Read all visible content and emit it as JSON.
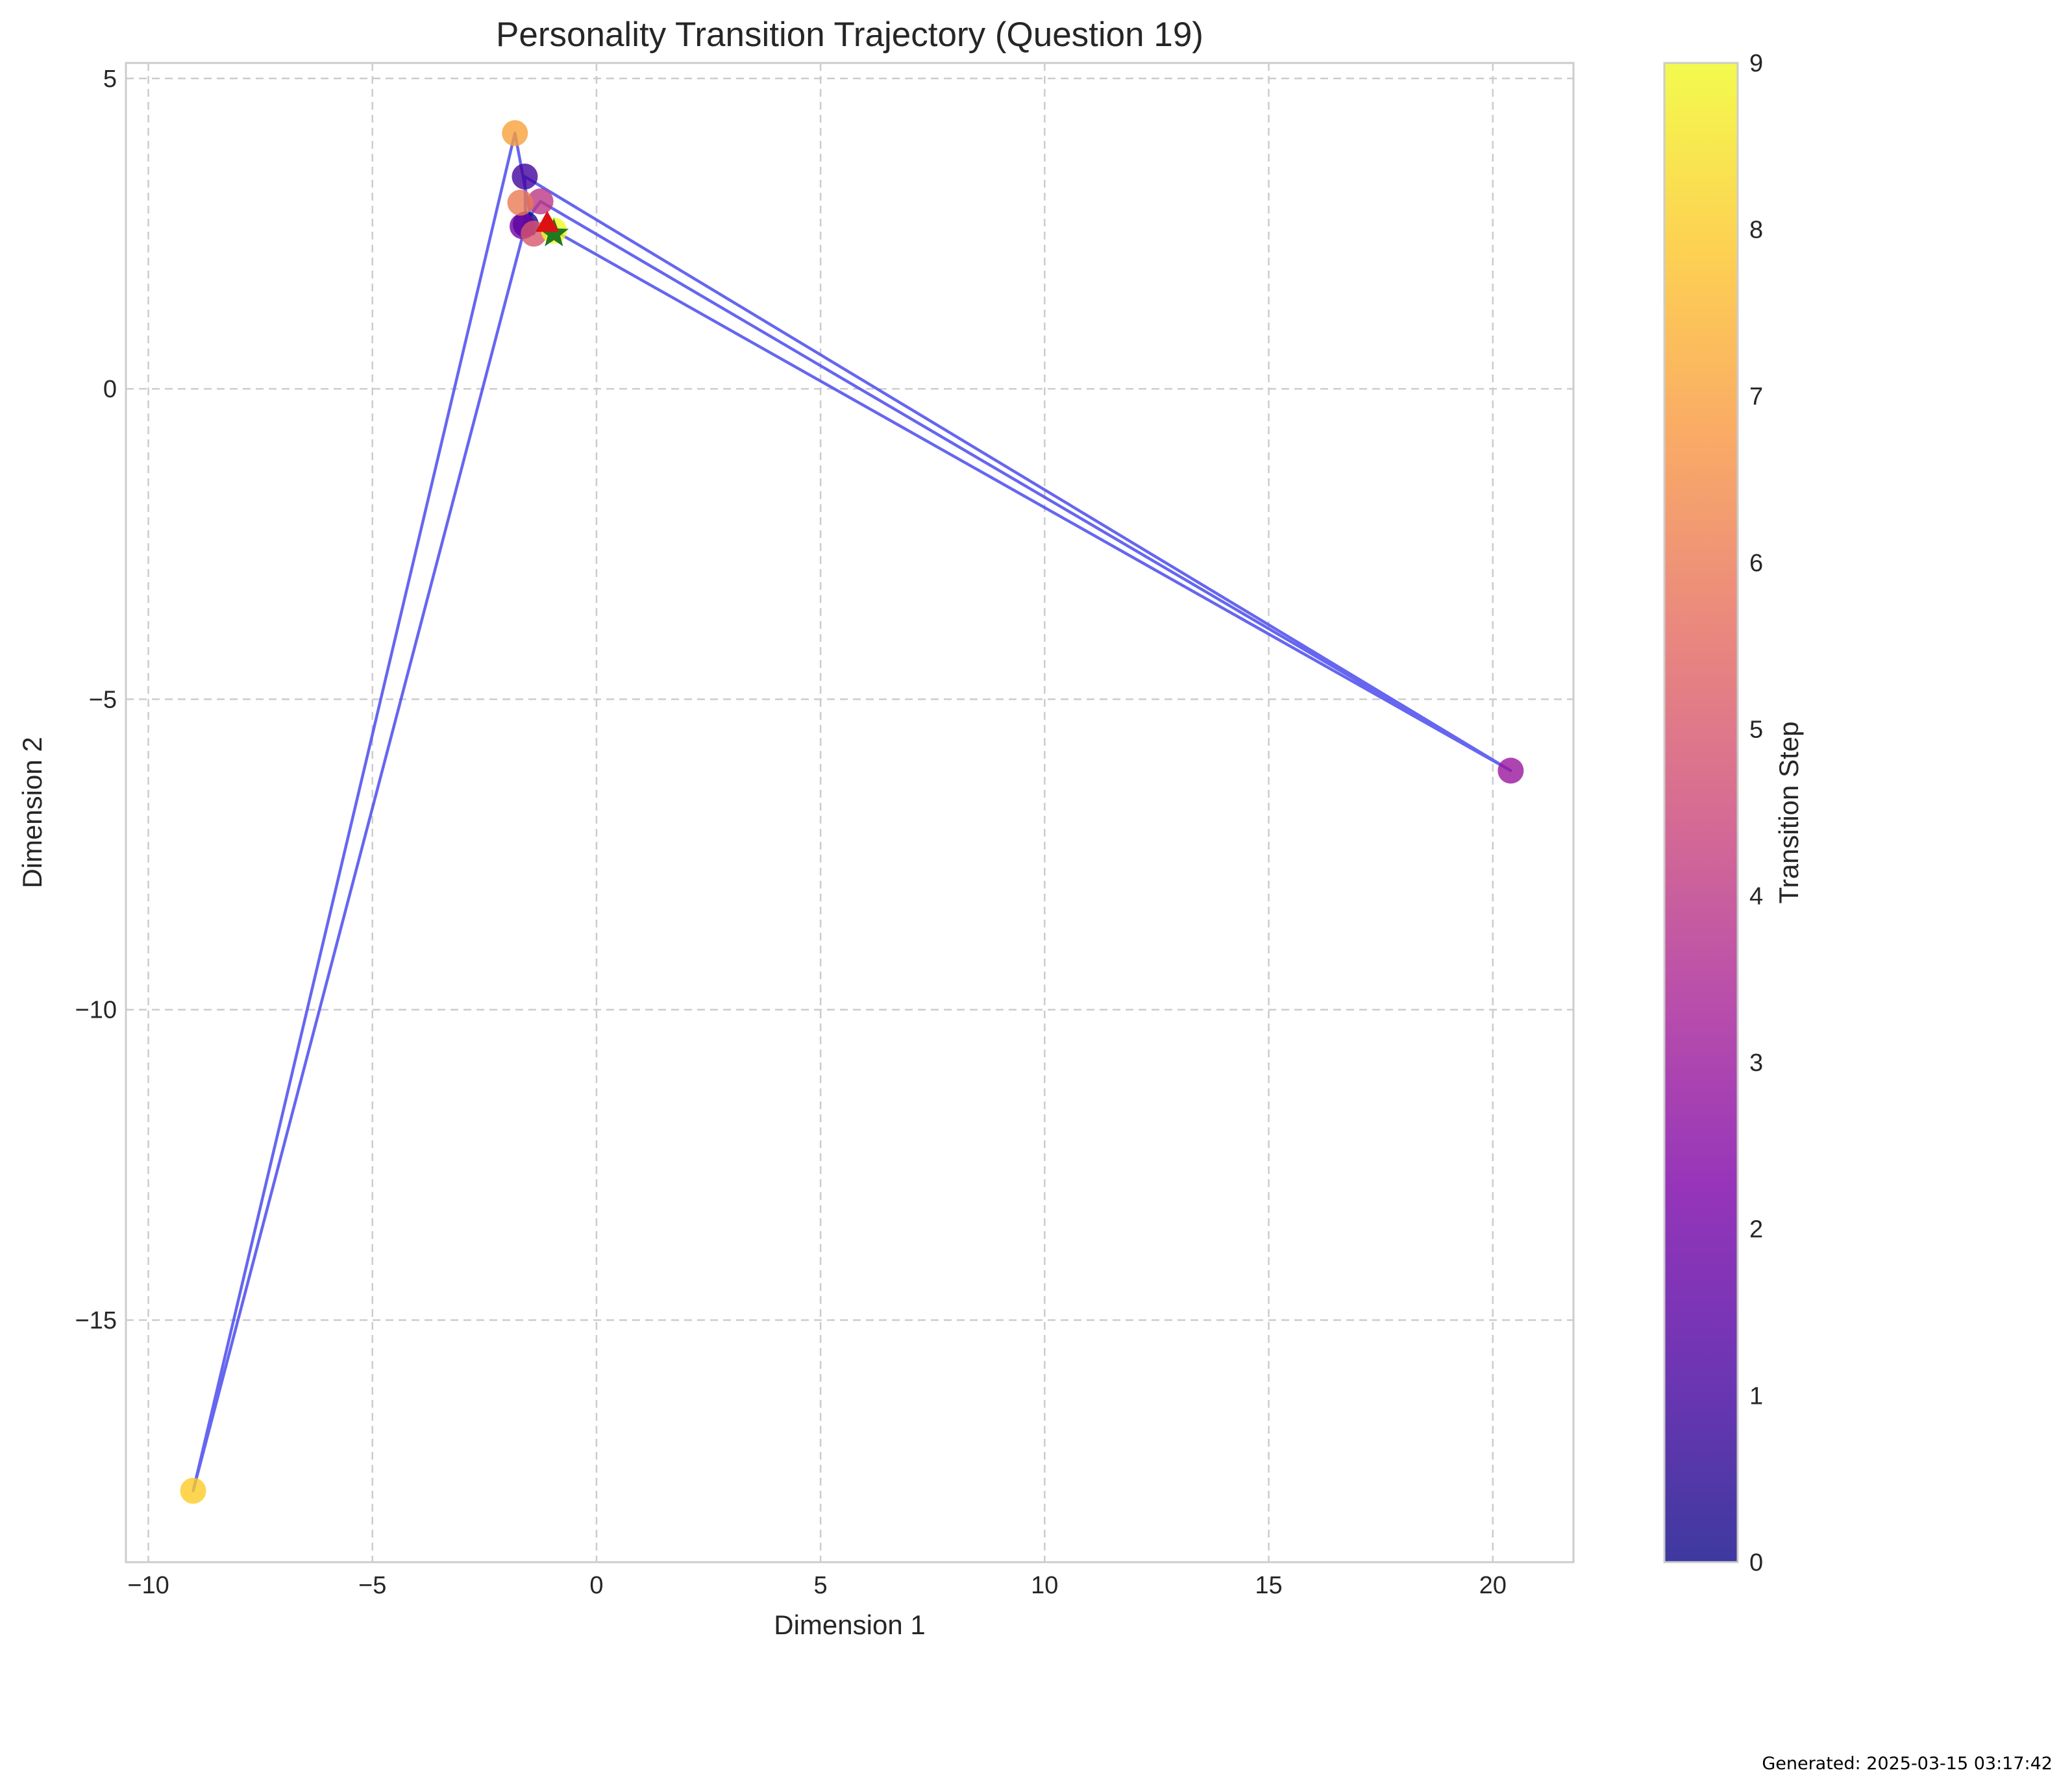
{
  "chart_data": {
    "type": "scatter",
    "title": "Personality Transition Trajectory (Question 19)",
    "xlabel": "Dimension 1",
    "ylabel": "Dimension 2",
    "xlim": [
      -10.5,
      21.8
    ],
    "ylim": [
      -18.9,
      5.25
    ],
    "xticks": [
      -10,
      -5,
      0,
      5,
      10,
      15,
      20
    ],
    "xtick_labels": [
      "−10",
      "−5",
      "0",
      "5",
      "10",
      "15",
      "20"
    ],
    "yticks": [
      5,
      0,
      -5,
      -10,
      -15
    ],
    "ytick_labels": [
      "5",
      "0",
      "−5",
      "−10",
      "−15"
    ],
    "grid": true,
    "grid_style": "dashed",
    "colormap": "plasma",
    "points": [
      {
        "step": 0,
        "x": -1.58,
        "y": 2.65
      },
      {
        "step": 1,
        "x": -1.6,
        "y": 3.42
      },
      {
        "step": 2,
        "x": -1.65,
        "y": 2.62
      },
      {
        "step": 3,
        "x": 20.4,
        "y": -6.15
      },
      {
        "step": 4,
        "x": -1.25,
        "y": 3.02
      },
      {
        "step": 5,
        "x": -1.4,
        "y": 2.5
      },
      {
        "step": 6,
        "x": -1.7,
        "y": 3.0
      },
      {
        "step": 7,
        "x": -1.82,
        "y": 4.12
      },
      {
        "step": 8,
        "x": -9.0,
        "y": -17.75
      },
      {
        "step": 9,
        "x": -0.95,
        "y": 2.55
      }
    ],
    "path": [
      [
        -0.95,
        2.55
      ],
      [
        20.4,
        -6.15
      ],
      [
        -1.6,
        3.42
      ],
      [
        -1.58,
        2.65
      ],
      [
        -9.0,
        -17.75
      ],
      [
        -1.82,
        4.12
      ],
      [
        -1.4,
        2.5
      ],
      [
        -1.65,
        2.62
      ],
      [
        -1.25,
        3.02
      ],
      [
        20.4,
        -6.15
      ],
      [
        -0.95,
        2.55
      ]
    ],
    "path_color": "#5555ee",
    "markers": {
      "start": {
        "shape": "star",
        "x": -0.95,
        "y": 2.5,
        "color": "#1f7a1f"
      },
      "end": {
        "shape": "triangle",
        "x": -1.1,
        "y": 2.68,
        "color": "#dd1111"
      }
    },
    "colorbar": {
      "label": "Transition Step",
      "min": 0,
      "max": 9,
      "ticks": [
        "0",
        "1",
        "2",
        "3",
        "4",
        "5",
        "6",
        "7",
        "8",
        "9"
      ]
    }
  },
  "footer": {
    "generated": "Generated: 2025-03-15 03:17:42"
  }
}
